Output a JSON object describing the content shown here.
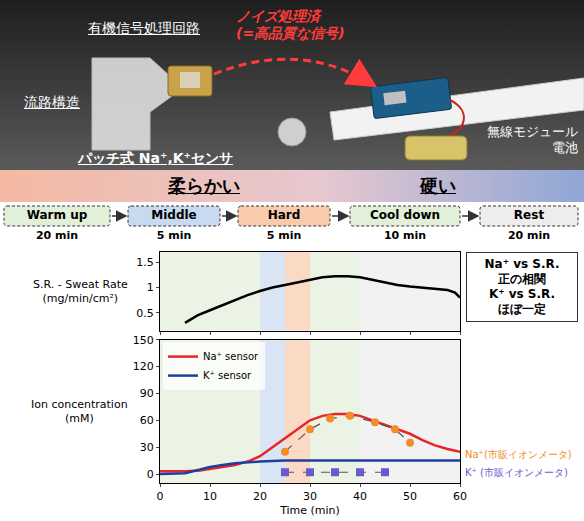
{
  "photo": {
    "circuit_label": "有機信号処理回路",
    "flow_label": "流路構造",
    "sensor_label": "パッチ式 Na⁺,K⁺センサ",
    "signal_label": "ノイズ処理済\n(=高品質な信号)",
    "module_label": "無線モジュール\n電池",
    "soft_label": "柔らかい",
    "hard_label": "硬い"
  },
  "phases": [
    {
      "name": "Warm up",
      "duration": 20,
      "duration_label": "20 min",
      "color": "#e2f0d9"
    },
    {
      "name": "Middle",
      "duration": 5,
      "duration_label": "5 min",
      "color": "#c9d9f0"
    },
    {
      "name": "Hard",
      "duration": 5,
      "duration_label": "5 min",
      "color": "#f8cbad"
    },
    {
      "name": "Cool down",
      "duration": 10,
      "duration_label": "10 min",
      "color": "#e2f0d9"
    },
    {
      "name": "Rest",
      "duration": 20,
      "duration_label": "20 min",
      "color": "#ededed"
    }
  ],
  "note": "Na⁺ vs S.R.\n正の相関\nK⁺ vs S.R.\nほぼ一定",
  "chart_data": [
    {
      "type": "line",
      "ylabel": "S.R. - Sweat Rate\n(mg/min/cm²)",
      "xlim": [
        0,
        60
      ],
      "xticks": [
        0,
        10,
        20,
        30,
        40,
        50,
        60
      ],
      "ylim": [
        0.15,
        1.7
      ],
      "yticks": [
        0.5,
        1,
        1.5
      ],
      "tick_labels": "y",
      "series": [
        {
          "name": "S.R.",
          "color": "#000000",
          "x": [
            5,
            7.5,
            10,
            12.5,
            15,
            17.5,
            20,
            22.5,
            25,
            27.5,
            30,
            32.5,
            35,
            37.5,
            40,
            42.5,
            45,
            47.5,
            50,
            52.5,
            55,
            57.5,
            59,
            60
          ],
          "values": [
            0.3,
            0.45,
            0.55,
            0.65,
            0.75,
            0.85,
            0.93,
            1.0,
            1.05,
            1.1,
            1.15,
            1.2,
            1.22,
            1.22,
            1.2,
            1.15,
            1.1,
            1.05,
            1.02,
            1.0,
            0.97,
            0.95,
            0.9,
            0.8
          ]
        }
      ]
    },
    {
      "type": "line",
      "xlabel": "Time (min)",
      "ylabel": "Ion concentration\n(mM)",
      "xlim": [
        0,
        60
      ],
      "xticks": [
        0,
        10,
        20,
        30,
        40,
        50,
        60
      ],
      "ylim": [
        -10,
        150
      ],
      "yticks": [
        0,
        30,
        60,
        90,
        120,
        150
      ],
      "legend": "upper left",
      "series": [
        {
          "name": "Na⁺ sensor",
          "color": "#e8242a",
          "x": [
            0,
            5,
            8,
            12,
            15,
            18,
            20,
            22.5,
            25,
            27.5,
            30,
            32.5,
            35,
            37.5,
            40,
            42.5,
            45,
            47.5,
            50,
            52.5,
            55,
            57.5,
            60
          ],
          "values": [
            3,
            3,
            4,
            7,
            10,
            15,
            20,
            30,
            40,
            50,
            60,
            65,
            67,
            67,
            65,
            60,
            55,
            50,
            45,
            38,
            32,
            28,
            25
          ]
        },
        {
          "name": "K⁺ sensor",
          "color": "#1f3fa0",
          "x": [
            0,
            5,
            8,
            10,
            12.5,
            15,
            20,
            25,
            30,
            35,
            40,
            45,
            50,
            55,
            60
          ],
          "values": [
            0,
            1,
            5,
            8,
            10,
            12,
            14,
            15,
            15,
            15,
            15,
            15,
            15,
            15,
            15
          ]
        },
        {
          "name": "Na⁺(市販イオンメータ)",
          "color": "#f28c28",
          "marker": "circle",
          "line_style": "dash",
          "x": [
            25,
            30,
            34,
            38,
            43,
            47,
            50
          ],
          "values": [
            25,
            50,
            62,
            65,
            58,
            50,
            35
          ]
        },
        {
          "name": "K⁺ (市販イオンメータ)",
          "color": "#6a5acd",
          "marker": "square",
          "line_style": "dash",
          "x": [
            25,
            30,
            35,
            40,
            45
          ],
          "values": [
            2,
            2,
            2,
            2,
            2
          ]
        }
      ]
    }
  ]
}
